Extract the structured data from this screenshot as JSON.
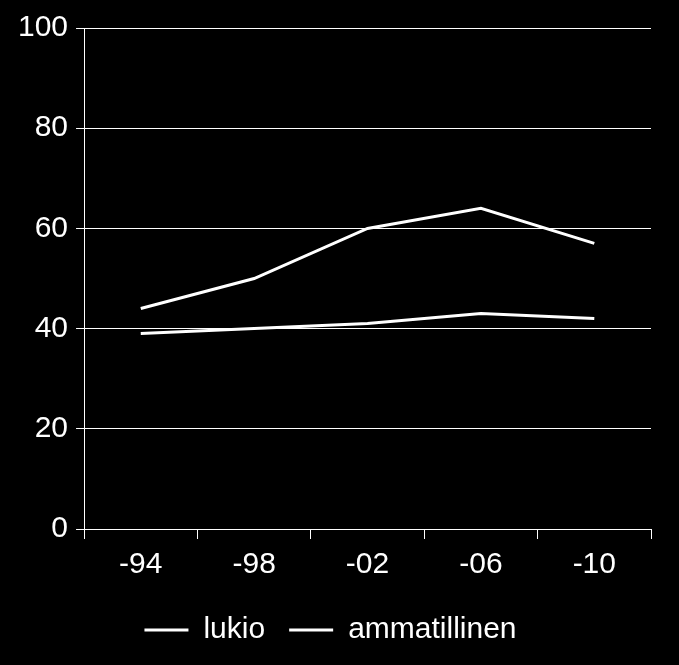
{
  "chart_data": {
    "type": "line",
    "categories": [
      "-94",
      "-98",
      "-02",
      "-06",
      "-10"
    ],
    "series": [
      {
        "name": "lukio",
        "color": "#ffffff",
        "values": [
          44,
          50,
          60,
          64,
          57
        ]
      },
      {
        "name": "ammatillinen",
        "color": "#ffffff",
        "values": [
          39,
          40,
          41,
          43,
          42
        ]
      }
    ],
    "ylim": [
      0,
      100
    ],
    "yticks": [
      0,
      20,
      40,
      60,
      80,
      100
    ],
    "grid": true,
    "legend": "bottom"
  }
}
